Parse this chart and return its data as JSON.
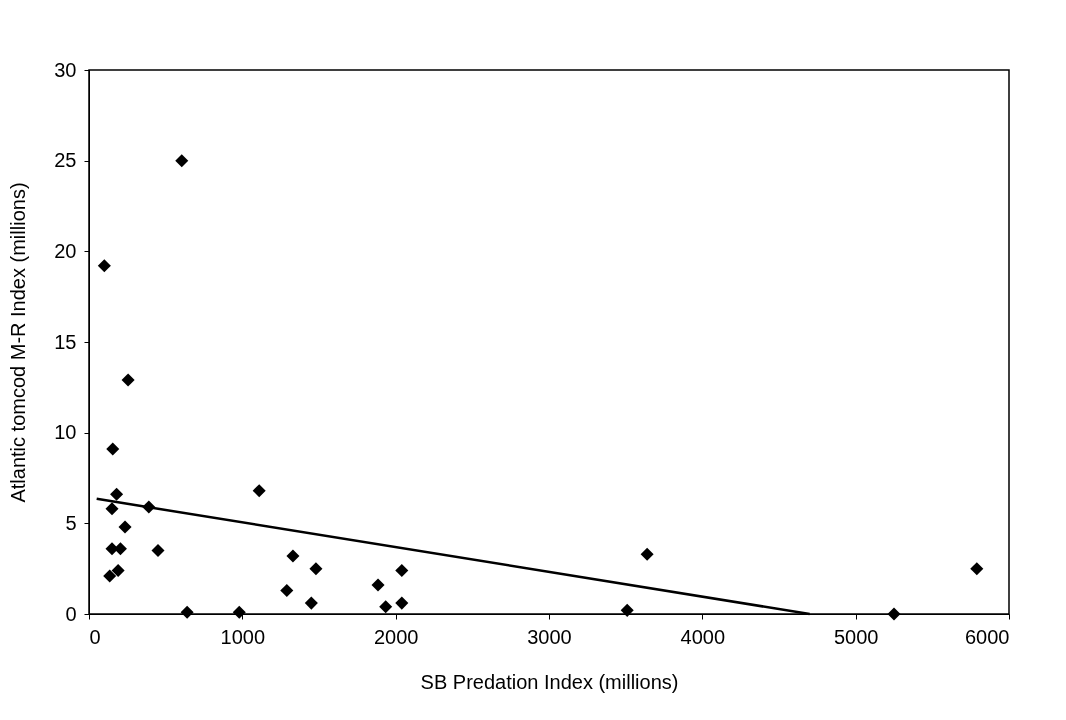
{
  "chart_data": {
    "type": "scatter",
    "xlabel": "SB Predation Index (millions)",
    "ylabel": "Atlantic tomcod M-R Index (millions)",
    "xlim": [
      0,
      6000
    ],
    "xticks": [
      0,
      1000,
      2000,
      3000,
      4000,
      5000,
      6000
    ],
    "ylim": [
      0,
      30
    ],
    "yticks": [
      0,
      5,
      10,
      15,
      20,
      25,
      30
    ],
    "grid": false,
    "marker": "diamond",
    "series": [
      {
        "color": "#000000",
        "x": [
          605,
          100,
          255,
          155,
          180,
          150,
          235,
          150,
          205,
          135,
          190,
          390,
          450,
          640,
          980,
          1110,
          1290,
          1330,
          1450,
          1480,
          1885,
          1935,
          2040,
          2040,
          3640,
          3510,
          5250,
          5790
        ],
        "values": [
          25.0,
          19.2,
          12.9,
          9.1,
          6.6,
          5.8,
          4.8,
          3.6,
          3.6,
          2.1,
          2.4,
          5.9,
          3.5,
          0.1,
          0.1,
          6.8,
          1.3,
          3.2,
          0.6,
          2.5,
          1.6,
          0.4,
          2.4,
          0.6,
          3.3,
          0.2,
          0.0,
          2.5
        ]
      },
      {
        "type": "line",
        "color": "#000000",
        "marker": "none",
        "line_style": "solid",
        "x": [
          50,
          4700
        ],
        "values": [
          6.35,
          0.0
        ]
      }
    ]
  }
}
